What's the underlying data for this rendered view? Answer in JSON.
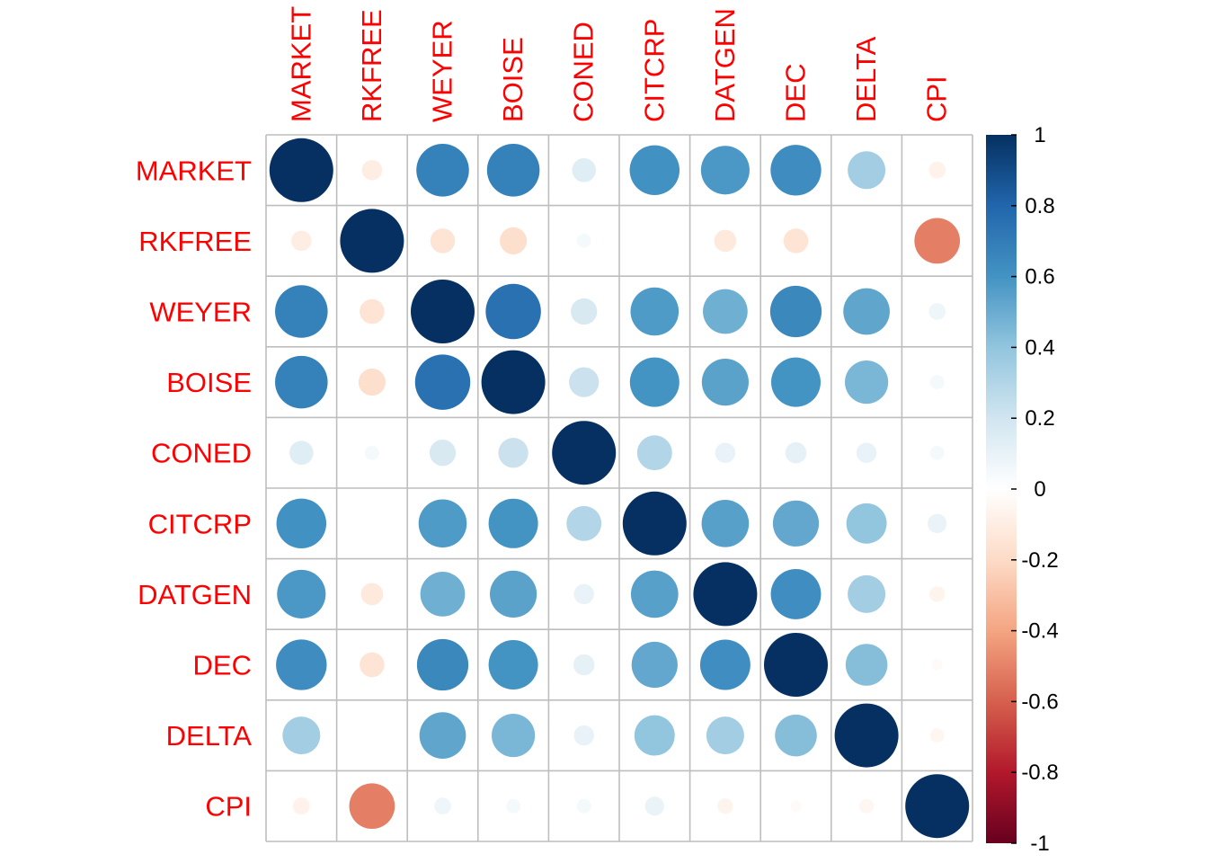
{
  "chart_data": {
    "type": "heatmap",
    "glyph": "circle",
    "variables": [
      "MARKET",
      "RKFREE",
      "WEYER",
      "BOISE",
      "CONED",
      "CITCRP",
      "DATGEN",
      "DEC",
      "DELTA",
      "CPI"
    ],
    "matrix": [
      [
        1.0,
        -0.1,
        0.68,
        0.68,
        0.14,
        0.61,
        0.58,
        0.63,
        0.35,
        -0.07
      ],
      [
        -0.1,
        1.0,
        -0.15,
        -0.18,
        0.05,
        0.0,
        -0.12,
        -0.15,
        0.0,
        -0.51
      ],
      [
        0.68,
        -0.15,
        1.0,
        0.75,
        0.17,
        0.57,
        0.49,
        0.65,
        0.53,
        0.07
      ],
      [
        0.68,
        -0.18,
        0.75,
        1.0,
        0.22,
        0.6,
        0.54,
        0.6,
        0.46,
        0.05
      ],
      [
        0.14,
        0.05,
        0.17,
        0.22,
        1.0,
        0.3,
        0.1,
        0.11,
        0.1,
        0.05
      ],
      [
        0.61,
        0.0,
        0.57,
        0.6,
        0.3,
        1.0,
        0.55,
        0.52,
        0.4,
        0.09
      ],
      [
        0.58,
        -0.12,
        0.49,
        0.54,
        0.1,
        0.55,
        1.0,
        0.62,
        0.35,
        -0.06
      ],
      [
        0.63,
        -0.15,
        0.65,
        0.6,
        0.11,
        0.52,
        0.62,
        1.0,
        0.43,
        -0.03
      ],
      [
        0.35,
        0.0,
        0.53,
        0.46,
        0.1,
        0.4,
        0.35,
        0.43,
        1.0,
        -0.05
      ],
      [
        -0.07,
        -0.51,
        0.07,
        0.05,
        0.05,
        0.09,
        -0.06,
        -0.03,
        -0.05,
        1.0
      ]
    ],
    "color_scale": {
      "min": -1,
      "max": 1,
      "stops": [
        "#67001f",
        "#b2182b",
        "#d6604d",
        "#f4a582",
        "#fddbc7",
        "#ffffff",
        "#d1e5f0",
        "#92c5de",
        "#4393c3",
        "#2166ac",
        "#053061"
      ],
      "ticks": [
        "1",
        "0.8",
        "0.6",
        "0.4",
        "0.2",
        "0",
        "-0.2",
        "-0.4",
        "-0.6",
        "-0.8",
        "-1"
      ]
    },
    "label_color": "#ff0000",
    "grid_color": "#bebebe",
    "legend_position": "right"
  }
}
